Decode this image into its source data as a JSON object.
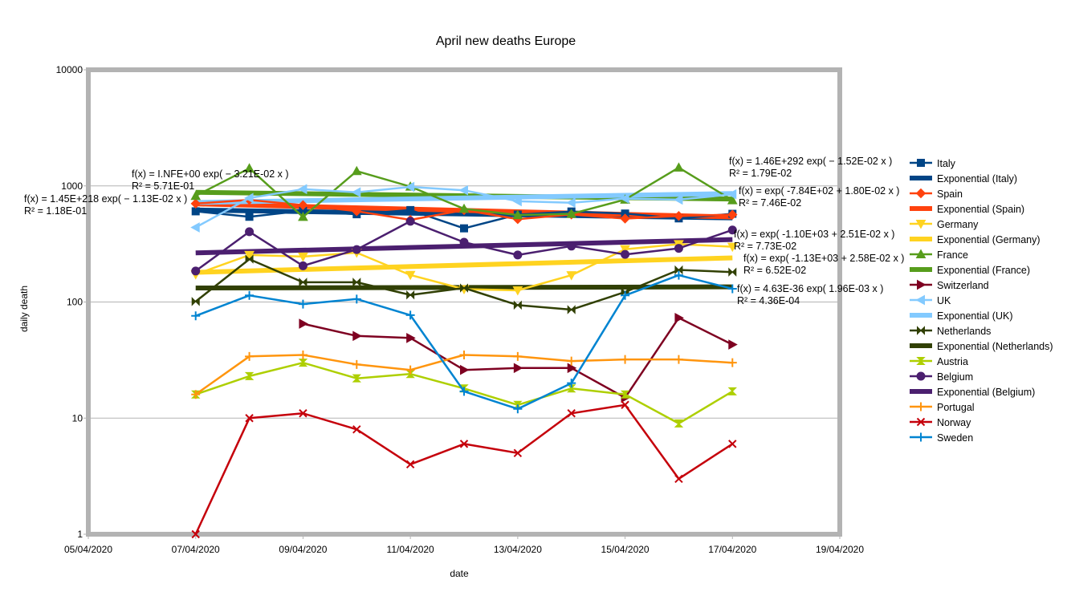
{
  "chart_data": {
    "type": "line",
    "title": "April new deaths Europe",
    "xlabel": "date",
    "ylabel": "daily death",
    "y_scale": "log",
    "ylim": [
      1,
      10000
    ],
    "xlim": [
      "05/04/2020",
      "19/04/2020"
    ],
    "grid": "horizontal major",
    "legend_position": "right",
    "x_tick_labels": [
      "05/04/2020",
      "07/04/2020",
      "09/04/2020",
      "11/04/2020",
      "13/04/2020",
      "15/04/2020",
      "17/04/2020",
      "19/04/2020"
    ],
    "y_tick_labels": [
      "1",
      "10",
      "100",
      "1000",
      "10000"
    ],
    "x": [
      "07/04/2020",
      "08/04/2020",
      "09/04/2020",
      "10/04/2020",
      "11/04/2020",
      "12/04/2020",
      "13/04/2020",
      "14/04/2020",
      "15/04/2020",
      "16/04/2020",
      "17/04/2020"
    ],
    "series": [
      {
        "name": "Italy",
        "color": "#004586",
        "marker": "square",
        "values": [
          604,
          542,
          610,
          570,
          619,
          431,
          566,
          602,
          578,
          525,
          575
        ],
        "trend_name": "Exponential (Italy)",
        "trend": [
          620,
          530
        ],
        "eq": "f(x) = 1.46E+292 exp( − 1.52E-02 x )",
        "r2": "R² = 1.79E-02"
      },
      {
        "name": "Spain",
        "color": "#ff420e",
        "marker": "diamond",
        "values": [
          704,
          757,
          683,
          605,
          510,
          619,
          517,
          567,
          523,
          551,
          565
        ],
        "trend_name": "Exponential (Spain)",
        "trend": [
          700,
          540
        ],
        "eq": "f(x) = 1.45E+218 exp( − 1.13E-02 x )",
        "r2": "R² = 1.18E-01"
      },
      {
        "name": "Germany",
        "color": "#ffd320",
        "marker": "triangle-down",
        "values": [
          173,
          254,
          246,
          266,
          171,
          129,
          126,
          170,
          285,
          315,
          299
        ],
        "trend_name": "Exponential (Germany)",
        "trend": [
          180,
          240
        ],
        "eq": "f(x) = exp( -1.10E+03 + 2.51E-02 x )",
        "r2": "R² = 7.73E-02"
      },
      {
        "name": "France",
        "color": "#579d1c",
        "marker": "triangle-up",
        "values": [
          820,
          1417,
          541,
          1341,
          987,
          635,
          561,
          574,
          762,
          1438,
          753
        ],
        "trend_name": "Exponential (France)",
        "trend": [
          880,
          770
        ],
        "eq": "f(x) = I.NFE+00 exp( − 3.21E-02 x )",
        "r2": "R² = 5.71E-01"
      },
      {
        "name": "Switzerland",
        "color": "#7e0021",
        "marker": "triangle-right",
        "values": [
          null,
          null,
          65,
          51,
          49,
          26,
          27,
          27,
          15,
          73,
          43
        ],
        "trend_name": null
      },
      {
        "name": "UK",
        "color": "#83caff",
        "marker": "triangle-left",
        "values": [
          439,
          786,
          938,
          881,
          980,
          917,
          737,
          717,
          778,
          761,
          847
        ],
        "trend_name": "Exponential (UK)",
        "trend": [
          720,
          860
        ],
        "eq": "f(x) = exp( -7.84E+02 + 1.80E-02 x )",
        "r2": "R² = 7.46E-02"
      },
      {
        "name": "Netherlands",
        "color": "#314004",
        "marker": "bowtie",
        "values": [
          101,
          234,
          148,
          148,
          115,
          132,
          94,
          86,
          122,
          189,
          181
        ],
        "trend_name": "Exponential (Netherlands)",
        "trend": [
          132,
          135
        ],
        "eq": "f(x) = 4.63E-36 exp( 1.96E-03 x )",
        "r2": "R² = 4.36E-04"
      },
      {
        "name": "Austria",
        "color": "#aecf00",
        "marker": "hourglass",
        "values": [
          16,
          23,
          30,
          22,
          24,
          18,
          13,
          18,
          16,
          9,
          17
        ],
        "trend_name": null
      },
      {
        "name": "Belgium",
        "color": "#4b1f6f",
        "marker": "circle",
        "values": [
          185,
          403,
          205,
          283,
          496,
          327,
          254,
          303,
          257,
          290,
          417
        ],
        "trend_name": "Exponential (Belgium)",
        "trend": [
          265,
          345
        ],
        "eq": "f(x) = exp( -1.13E+03 + 2.58E-02 x )",
        "r2": "R² = 6.52E-02"
      },
      {
        "name": "Portugal",
        "color": "#ff950e",
        "marker": "plus",
        "values": [
          16,
          34,
          35,
          29,
          26,
          35,
          34,
          31,
          32,
          32,
          30
        ],
        "trend_name": null
      },
      {
        "name": "Norway",
        "color": "#c5000b",
        "marker": "x",
        "values": [
          1,
          10,
          11,
          8,
          4,
          6,
          5,
          11,
          13,
          3,
          6
        ],
        "trend_name": null
      },
      {
        "name": "Sweden",
        "color": "#0084d1",
        "marker": "plus",
        "values": [
          76,
          114,
          96,
          106,
          77,
          17,
          12,
          20,
          114,
          170,
          130
        ],
        "trend_name": null
      }
    ]
  }
}
